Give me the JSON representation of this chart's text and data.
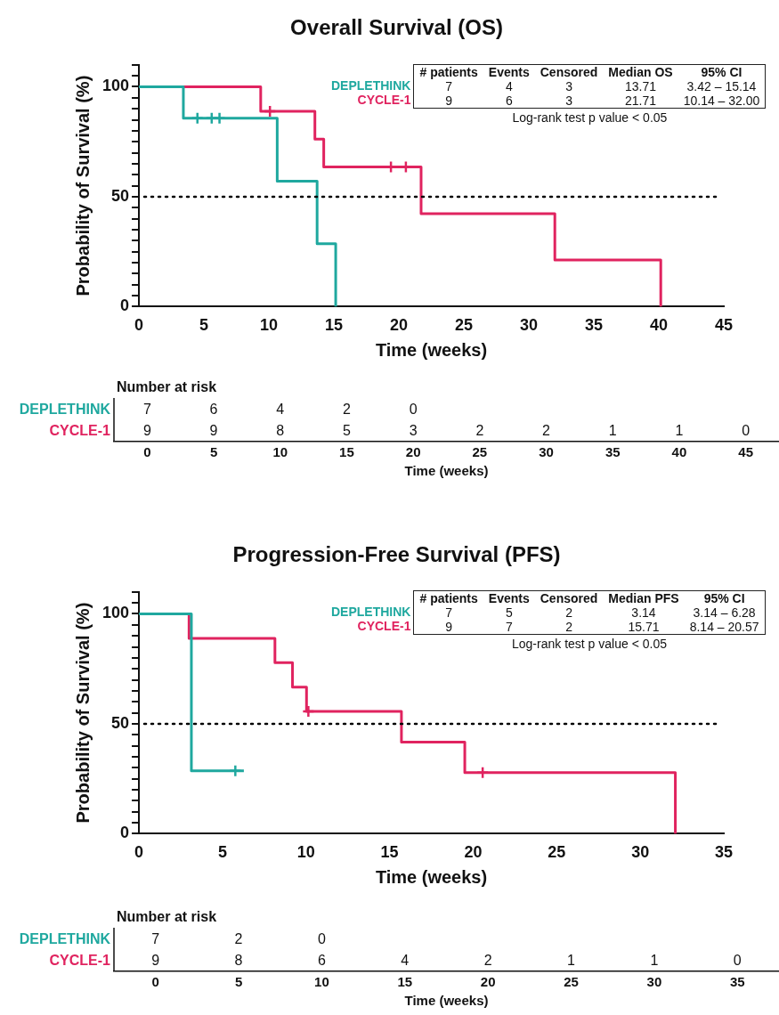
{
  "chart_data": [
    {
      "type": "step",
      "title": "Overall Survival (OS)",
      "xlabel": "Time (weeks)",
      "ylabel": "Probability of Survival (%)",
      "xlim": [
        0,
        45
      ],
      "xticks": [
        0,
        5,
        10,
        15,
        20,
        25,
        30,
        35,
        40,
        45
      ],
      "ylim": [
        0,
        110
      ],
      "yticks": [
        0,
        {
          "value": 5,
          "label": null
        },
        {
          "value": 10,
          "label": null
        },
        {
          "value": 15,
          "label": null
        },
        {
          "value": 20,
          "label": null
        },
        {
          "value": 25,
          "label": null
        },
        {
          "value": 30,
          "label": null
        },
        {
          "value": 35,
          "label": null
        },
        {
          "value": 40,
          "label": null
        },
        {
          "value": 45,
          "label": null
        },
        50,
        {
          "value": 55,
          "label": null
        },
        {
          "value": 60,
          "label": null
        },
        {
          "value": 65,
          "label": null
        },
        {
          "value": 70,
          "label": null
        },
        {
          "value": 75,
          "label": null
        },
        {
          "value": 80,
          "label": null
        },
        {
          "value": 85,
          "label": null
        },
        {
          "value": 90,
          "label": null
        },
        {
          "value": 95,
          "label": null
        },
        100,
        {
          "value": 105,
          "label": null
        },
        {
          "value": 110,
          "label": null
        }
      ],
      "ref_lines": [
        {
          "axis": "y",
          "value": 50,
          "line_style": "dotted",
          "color": "#000000"
        }
      ],
      "series": [
        {
          "color": "#1fa89f",
          "x": [
            0,
            3.42,
            10.64,
            13.71,
            15.14
          ],
          "values": [
            100,
            85.7,
            57.1,
            28.6,
            0
          ]
        },
        {
          "color": "#e0235f",
          "x": [
            0,
            9.37,
            13.54,
            14.22,
            21.71,
            32.0,
            40.15
          ],
          "values": [
            100,
            88.9,
            76.2,
            63.5,
            42.3,
            21.2,
            0
          ]
        },
        {
          "type": "scatter",
          "marker": "cross",
          "color": "#1fa89f",
          "x": [
            4.5,
            5.6,
            6.2
          ],
          "values": [
            85.7,
            85.7,
            85.7
          ]
        },
        {
          "type": "scatter",
          "marker": "cross",
          "color": "#e0235f",
          "x": [
            10.08,
            19.39,
            20.54
          ],
          "values": [
            88.9,
            63.5,
            63.5
          ]
        }
      ]
    },
    {
      "type": "other",
      "categories": [
        "# patients",
        "Events",
        "Censored",
        "Median OS",
        "95% CI"
      ],
      "y_categories": [
        "DEPLETHINK",
        "CYCLE-1"
      ],
      "colors": [
        "#1fa89f",
        "#e0235f"
      ],
      "cell_labels": [
        [
          "7",
          "4",
          "3",
          "13.71",
          "3.42 – 15.14"
        ],
        [
          "9",
          "6",
          "3",
          "21.71",
          "10.14 – 32.00"
        ]
      ],
      "annotations": [
        "Log-rank test p value < 0.05"
      ]
    },
    {
      "type": "heatmap",
      "title": "Number at risk",
      "xlabel": "Time (weeks)",
      "categories": [
        "0",
        "5",
        "10",
        "15",
        "20",
        "25",
        "30",
        "35",
        "40",
        "45"
      ],
      "y_categories": [
        "DEPLETHINK",
        "CYCLE-1"
      ],
      "colors": [
        "#1fa89f",
        "#e0235f"
      ],
      "data_labels": true,
      "cells": [
        [
          7,
          6,
          4,
          2,
          0,
          null,
          null,
          null,
          null,
          null
        ],
        [
          9,
          9,
          8,
          5,
          3,
          2,
          2,
          1,
          1,
          0
        ]
      ]
    },
    {
      "type": "step",
      "title": "Progression-Free Survival (PFS)",
      "xlabel": "Time (weeks)",
      "ylabel": "Probability of Survival (%)",
      "xlim": [
        0,
        35
      ],
      "xticks": [
        0,
        5,
        10,
        15,
        20,
        25,
        30,
        35
      ],
      "ylim": [
        0,
        110
      ],
      "yticks": [
        0,
        {
          "value": 5,
          "label": null
        },
        {
          "value": 10,
          "label": null
        },
        {
          "value": 15,
          "label": null
        },
        {
          "value": 20,
          "label": null
        },
        {
          "value": 25,
          "label": null
        },
        {
          "value": 30,
          "label": null
        },
        {
          "value": 35,
          "label": null
        },
        {
          "value": 40,
          "label": null
        },
        {
          "value": 45,
          "label": null
        },
        50,
        {
          "value": 55,
          "label": null
        },
        {
          "value": 60,
          "label": null
        },
        {
          "value": 65,
          "label": null
        },
        {
          "value": 70,
          "label": null
        },
        {
          "value": 75,
          "label": null
        },
        {
          "value": 80,
          "label": null
        },
        {
          "value": 85,
          "label": null
        },
        {
          "value": 90,
          "label": null
        },
        {
          "value": 95,
          "label": null
        },
        100,
        {
          "value": 105,
          "label": null
        },
        {
          "value": 110,
          "label": null
        }
      ],
      "ref_lines": [
        {
          "axis": "y",
          "value": 50,
          "line_style": "dotted",
          "color": "#000000"
        }
      ],
      "series": [
        {
          "color": "#1fa89f",
          "x": [
            0,
            3.14,
            6.28
          ],
          "values": [
            100,
            28.6,
            28.6
          ]
        },
        {
          "color": "#e0235f",
          "x": [
            0,
            3.0,
            8.14,
            9.19,
            10.03,
            15.71,
            19.5,
            32.1
          ],
          "values": [
            100,
            88.9,
            77.8,
            66.7,
            55.6,
            41.7,
            27.8,
            0
          ]
        },
        {
          "type": "scatter",
          "marker": "cross",
          "color": "#1fa89f",
          "x": [
            5.77
          ],
          "values": [
            28.6
          ]
        },
        {
          "type": "scatter",
          "marker": "cross",
          "color": "#e0235f",
          "x": [
            10.14,
            20.57
          ],
          "values": [
            55.6,
            27.8
          ]
        }
      ]
    },
    {
      "type": "other",
      "categories": [
        "# patients",
        "Events",
        "Censored",
        "Median PFS",
        "95% CI"
      ],
      "y_categories": [
        "DEPLETHINK",
        "CYCLE-1"
      ],
      "colors": [
        "#1fa89f",
        "#e0235f"
      ],
      "cell_labels": [
        [
          "7",
          "5",
          "2",
          "3.14",
          "3.14 – 6.28"
        ],
        [
          "9",
          "7",
          "2",
          "15.71",
          "8.14 – 20.57"
        ]
      ],
      "annotations": [
        "Log-rank test p value < 0.05"
      ]
    },
    {
      "type": "heatmap",
      "title": "Number at risk",
      "xlabel": "Time (weeks)",
      "categories": [
        "0",
        "5",
        "10",
        "15",
        "20",
        "25",
        "30",
        "35"
      ],
      "y_categories": [
        "DEPLETHINK",
        "CYCLE-1"
      ],
      "colors": [
        "#1fa89f",
        "#e0235f"
      ],
      "data_labels": true,
      "cells": [
        [
          7,
          2,
          0,
          null,
          null,
          null,
          null,
          null
        ],
        [
          9,
          8,
          6,
          4,
          2,
          1,
          1,
          0
        ]
      ]
    }
  ]
}
